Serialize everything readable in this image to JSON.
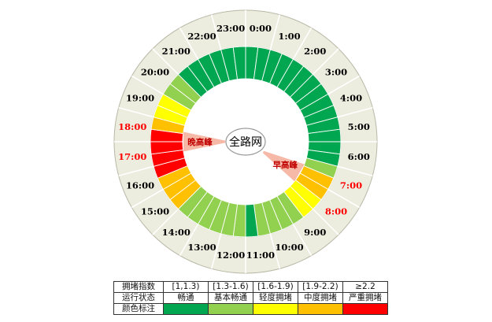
{
  "chart_data": {
    "type": "radial",
    "center_label": "全路网",
    "hour_labels": [
      "0:00",
      "1:00",
      "2:00",
      "3:00",
      "4:00",
      "5:00",
      "6:00",
      "7:00",
      "8:00",
      "9:00",
      "10:00",
      "11:00",
      "12:00",
      "13:00",
      "14:00",
      "15:00",
      "16:00",
      "17:00",
      "18:00",
      "19:00",
      "20:00",
      "21:00",
      "22:00",
      "23:00"
    ],
    "highlighted_hours": [
      "7:00",
      "8:00",
      "17:00",
      "18:00"
    ],
    "peaks": [
      {
        "label": "早高峰",
        "hours": [
          "7:00",
          "8:00"
        ]
      },
      {
        "label": "晚高峰",
        "hours": [
          "17:00",
          "18:00"
        ]
      }
    ],
    "segments_per_hour": 2,
    "segment_levels": [
      "畅通",
      "畅通",
      "畅通",
      "畅通",
      "畅通",
      "畅通",
      "畅通",
      "畅通",
      "畅通",
      "畅通",
      "畅通",
      "畅通",
      "畅通",
      "畅通",
      "基本畅通",
      "中度拥堵",
      "中度拥堵",
      "轻度拥堵",
      "轻度拥堵",
      "基本畅通",
      "基本畅通",
      "基本畅通",
      "基本畅通",
      "畅通",
      "基本畅通",
      "基本畅通",
      "基本畅通",
      "基本畅通",
      "基本畅通",
      "基本畅通",
      "中度拥堵",
      "中度拥堵",
      "中度拥堵",
      "严重拥堵",
      "严重拥堵",
      "严重拥堵",
      "严重拥堵",
      "中度拥堵",
      "轻度拥堵",
      "轻度拥堵",
      "基本畅通",
      "基本畅通",
      "畅通",
      "畅通",
      "畅通",
      "畅通",
      "畅通",
      "畅通"
    ],
    "levels": [
      {
        "index": "[1,1.3)",
        "status": "畅通",
        "color": "#00a650"
      },
      {
        "index": "[1.3-1.6)",
        "status": "基本畅通",
        "color": "#92d050"
      },
      {
        "index": "[1.6-1.9)",
        "status": "轻度拥堵",
        "color": "#ffff00"
      },
      {
        "index": "[1.9-2.2)",
        "status": "中度拥堵",
        "color": "#ffc000"
      },
      {
        "index": "≥2.2",
        "status": "严重拥堵",
        "color": "#ff0000"
      }
    ],
    "legend_row_labels": [
      "拥堵指数",
      "运行状态",
      "颜色标注"
    ],
    "colors": {
      "hour_label": "#000000",
      "peak_hour_label": "#ff0000",
      "peak_sector": "#f7b9a7",
      "peak_text": "#c00000",
      "outer_ring": "#ececdf"
    }
  }
}
